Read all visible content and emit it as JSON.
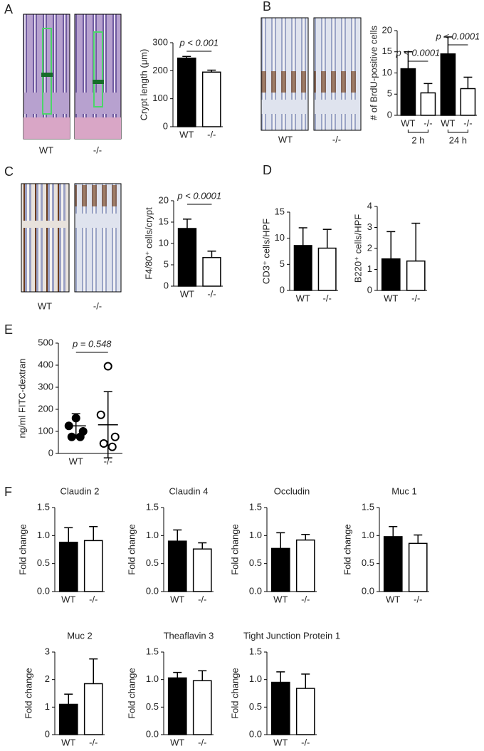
{
  "panel_letters": [
    "A",
    "B",
    "C",
    "D",
    "E",
    "F"
  ],
  "image_panels": [
    {
      "captions": [
        "WT",
        "-/-"
      ]
    },
    {
      "captions": [
        "WT",
        "-/-"
      ]
    },
    {
      "captions": [
        "WT",
        "-/-"
      ]
    }
  ],
  "chart_data": [
    {
      "type": "bar",
      "ylabel": "Crypt length (μm)",
      "categories": [
        "WT",
        "-/-"
      ],
      "values": [
        245,
        195
      ],
      "errors": [
        6,
        7
      ],
      "colors": [
        "#000000",
        "#ffffff"
      ],
      "ylim": [
        0,
        300
      ],
      "yticks": [
        0,
        100,
        200,
        300
      ],
      "annotations": [
        "p < 0.001"
      ]
    },
    {
      "type": "bar",
      "ylabel": "# of BrdU-positive cells",
      "categories": [
        "WT",
        "-/-",
        "WT",
        "-/-"
      ],
      "values": [
        11,
        5.3,
        14.5,
        6.3
      ],
      "errors": [
        4,
        2.2,
        4,
        2.7
      ],
      "colors": [
        "#000000",
        "#ffffff",
        "#000000",
        "#ffffff"
      ],
      "ylim": [
        0,
        20
      ],
      "yticks": [
        0,
        5,
        10,
        15,
        20
      ],
      "annotations": [
        "p < 0.0001",
        "p < 0.0001"
      ],
      "group_labels": [
        "2 h",
        "24 h"
      ]
    },
    {
      "type": "bar",
      "ylabel": "F4/80⁺ cells/crypt",
      "categories": [
        "WT",
        "-/-"
      ],
      "values": [
        13.5,
        6.7
      ],
      "errors": [
        2.2,
        1.5
      ],
      "colors": [
        "#000000",
        "#ffffff"
      ],
      "ylim": [
        0,
        20
      ],
      "yticks": [
        0,
        5,
        10,
        15,
        20
      ],
      "annotations": [
        "p < 0.0001"
      ]
    },
    {
      "type": "bar",
      "ylabel": "CD3⁺ cells/HPF",
      "categories": [
        "WT",
        "-/-"
      ],
      "values": [
        8.6,
        8.1
      ],
      "errors": [
        3.4,
        3.6
      ],
      "colors": [
        "#000000",
        "#ffffff"
      ],
      "ylim": [
        0,
        15
      ],
      "yticks": [
        0,
        5,
        10,
        15
      ]
    },
    {
      "type": "bar",
      "ylabel": "B220⁺ cells/HPF",
      "categories": [
        "WT",
        "-/-"
      ],
      "values": [
        1.5,
        1.4
      ],
      "errors": [
        1.3,
        1.8
      ],
      "colors": [
        "#000000",
        "#ffffff"
      ],
      "ylim": [
        0,
        4
      ],
      "yticks": [
        0,
        1,
        2,
        3,
        4
      ]
    },
    {
      "type": "scatter",
      "ylabel": "ng/ml FITC-dextran",
      "categories": [
        "WT",
        "-/-"
      ],
      "points": [
        [
          160,
          125,
          100,
          75,
          75
        ],
        [
          395,
          175,
          75,
          45,
          30
        ]
      ],
      "means": [
        125,
        130
      ],
      "errors": [
        55,
        150
      ],
      "colors": [
        "#000000",
        "#ffffff"
      ],
      "ylim": [
        0,
        500
      ],
      "yticks": [
        0,
        100,
        200,
        300,
        400,
        500
      ],
      "annotations": [
        "p = 0.548"
      ]
    },
    {
      "type": "bar",
      "title": "Claudin 2",
      "ylabel": "Fold change",
      "categories": [
        "WT",
        "-/-"
      ],
      "values": [
        0.88,
        0.91
      ],
      "errors": [
        0.26,
        0.25
      ],
      "colors": [
        "#000000",
        "#ffffff"
      ],
      "ylim": [
        0,
        1.5
      ],
      "yticks": [
        {
          "value": 0,
          "label": "0.0"
        },
        0.5,
        {
          "value": 1,
          "label": "1.0"
        },
        1.5
      ]
    },
    {
      "type": "bar",
      "title": "Claudin 4",
      "ylabel": "Fold change",
      "categories": [
        "WT",
        "-/-"
      ],
      "values": [
        0.9,
        0.76
      ],
      "errors": [
        0.2,
        0.11
      ],
      "colors": [
        "#000000",
        "#ffffff"
      ],
      "ylim": [
        0,
        1.5
      ],
      "yticks": [
        {
          "value": 0,
          "label": "0.0"
        },
        0.5,
        {
          "value": 1,
          "label": "1.0"
        },
        1.5
      ]
    },
    {
      "type": "bar",
      "title": "Occludin",
      "ylabel": "Fold change",
      "categories": [
        "WT",
        "-/-"
      ],
      "values": [
        0.77,
        0.92
      ],
      "errors": [
        0.28,
        0.1
      ],
      "colors": [
        "#000000",
        "#ffffff"
      ],
      "ylim": [
        0,
        1.5
      ],
      "yticks": [
        {
          "value": 0,
          "label": "0.0"
        },
        0.5,
        {
          "value": 1,
          "label": "1.0"
        },
        1.5
      ]
    },
    {
      "type": "bar",
      "title": "Muc 1",
      "ylabel": "Fold change",
      "categories": [
        "WT",
        "-/-"
      ],
      "values": [
        0.98,
        0.86
      ],
      "errors": [
        0.18,
        0.15
      ],
      "colors": [
        "#000000",
        "#ffffff"
      ],
      "ylim": [
        0,
        1.5
      ],
      "yticks": [
        {
          "value": 0,
          "label": "0.0"
        },
        0.5,
        {
          "value": 1,
          "label": "1.0"
        },
        1.5
      ]
    },
    {
      "type": "bar",
      "title": "Muc 2",
      "ylabel": "Fold change",
      "categories": [
        "WT",
        "-/-"
      ],
      "values": [
        1.1,
        1.85
      ],
      "errors": [
        0.37,
        0.9
      ],
      "colors": [
        "#000000",
        "#ffffff"
      ],
      "ylim": [
        0,
        3
      ],
      "yticks": [
        0,
        1,
        2,
        3
      ]
    },
    {
      "type": "bar",
      "title": "Theaflavin 3",
      "ylabel": "Fold change",
      "categories": [
        "WT",
        "-/-"
      ],
      "values": [
        1.03,
        0.98
      ],
      "errors": [
        0.1,
        0.18
      ],
      "colors": [
        "#000000",
        "#ffffff"
      ],
      "ylim": [
        0,
        1.5
      ],
      "yticks": [
        {
          "value": 0,
          "label": "0.0"
        },
        0.5,
        {
          "value": 1,
          "label": "1.0"
        },
        1.5
      ]
    },
    {
      "type": "bar",
      "title": "Tight Junction Protein 1",
      "ylabel": "Fold change",
      "categories": [
        "WT",
        "-/-"
      ],
      "values": [
        0.95,
        0.84
      ],
      "errors": [
        0.19,
        0.26
      ],
      "colors": [
        "#000000",
        "#ffffff"
      ],
      "ylim": [
        0,
        1.5
      ],
      "yticks": [
        {
          "value": 0,
          "label": "0.0"
        },
        0.5,
        {
          "value": 1,
          "label": "1.0"
        },
        1.5
      ]
    }
  ]
}
